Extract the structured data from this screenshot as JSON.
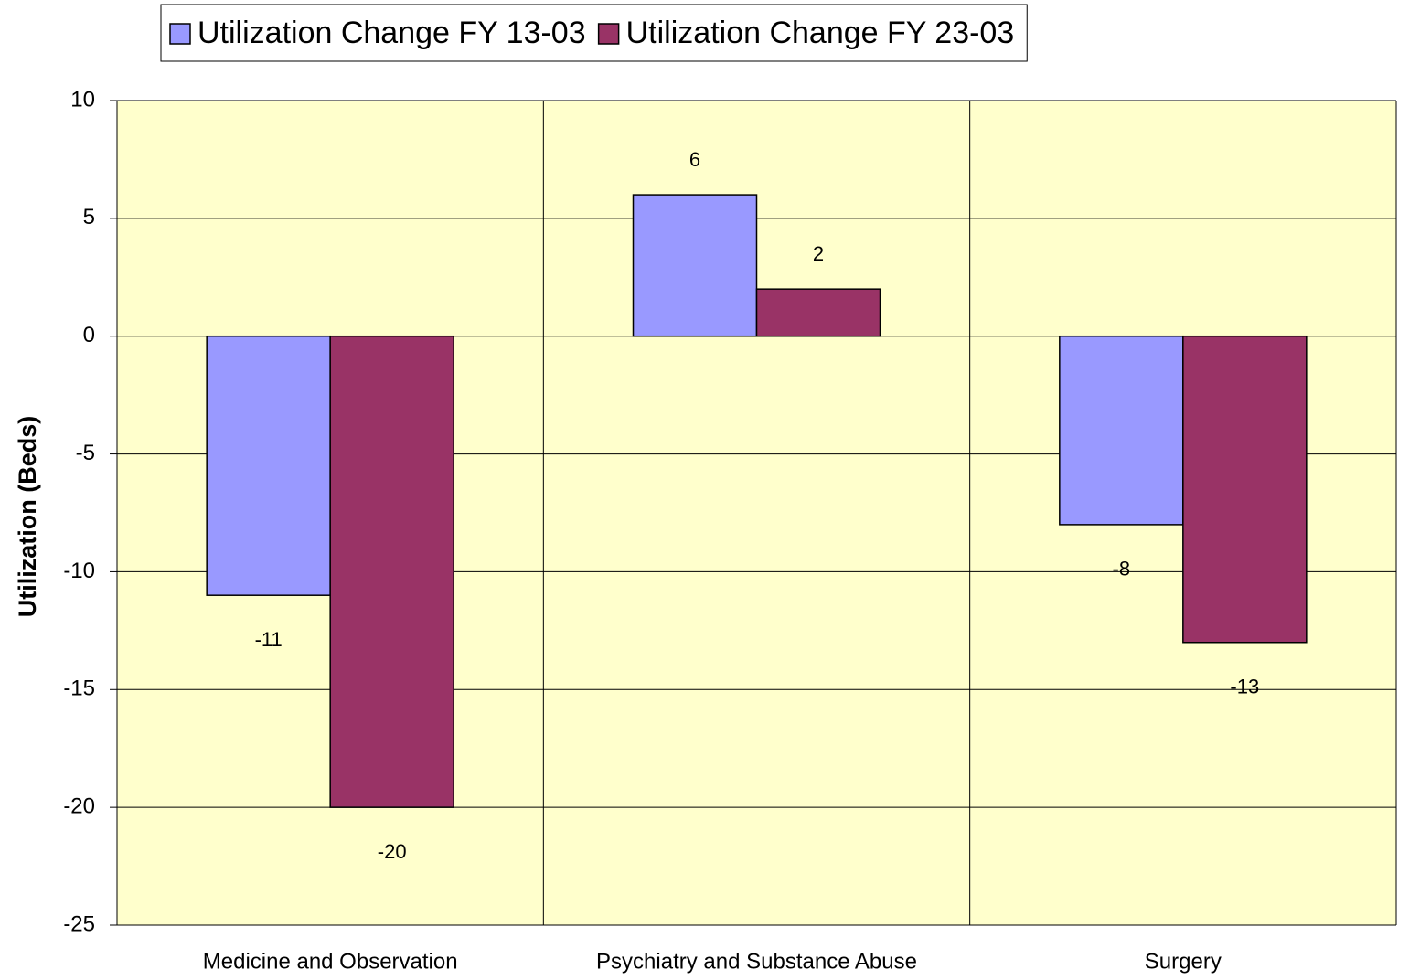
{
  "chart_data": {
    "type": "bar",
    "y_label": "Utilization (Beds)",
    "categories": [
      "Medicine and Observation",
      "Psychiatry and Substance Abuse",
      "Surgery"
    ],
    "series": [
      {
        "name": "Utilization Change FY 13-03",
        "color": "#9999ff",
        "values": [
          -11,
          6,
          -8
        ]
      },
      {
        "name": "Utilization Change FY 23-03",
        "color": "#993366",
        "values": [
          -20,
          2,
          -13
        ]
      }
    ],
    "ylim": [
      -25,
      10
    ],
    "yticks": [
      10,
      5,
      0,
      -5,
      -10,
      -15,
      -20,
      -25
    ],
    "grid": true,
    "plot_background": "#ffffcc",
    "legend_position": "top"
  }
}
